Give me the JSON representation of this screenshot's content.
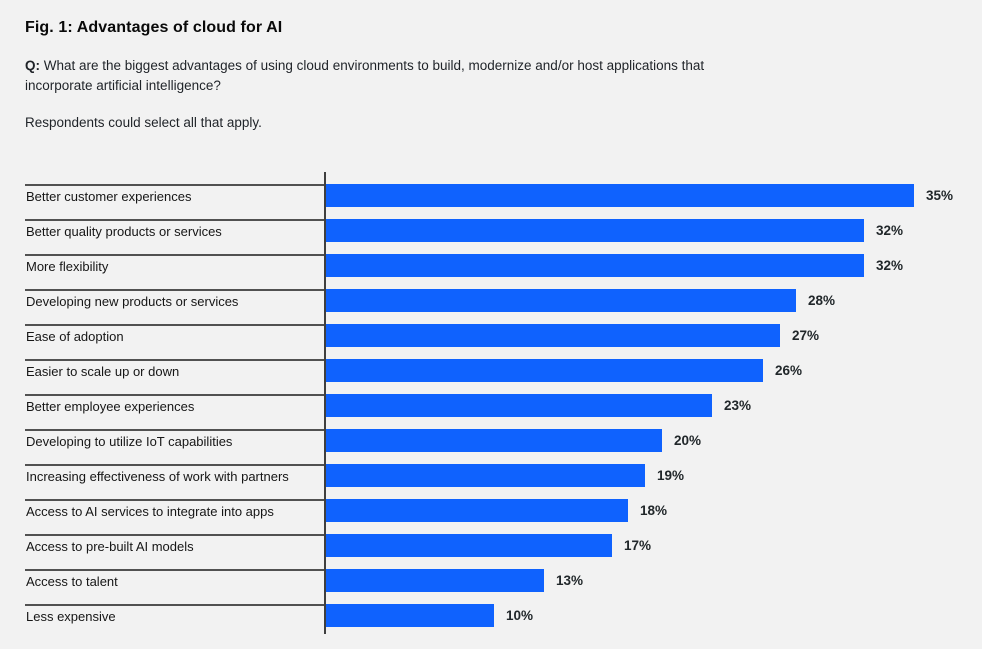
{
  "header": {
    "title": "Fig. 1: Advantages of cloud for AI",
    "question_prefix": "Q:",
    "question_text": " What are the biggest advantages of using cloud environments to build, modernize and/or host applications that incorporate artificial intelligence?",
    "note": "Respondents could select all that apply."
  },
  "chart_data": {
    "type": "bar",
    "orientation": "horizontal",
    "title": "Fig. 1: Advantages of cloud for AI",
    "categories": [
      "Better customer experiences",
      "Better quality products or services",
      "More flexibility",
      "Developing new products or services",
      "Ease of adoption",
      "Easier to scale up or down",
      "Better employee experiences",
      "Developing to utilize IoT capabilities",
      "Increasing effectiveness of work with partners",
      "Access to AI services to integrate into apps",
      "Access to pre-built AI models",
      "Access to talent",
      "Less expensive"
    ],
    "values": [
      35,
      32,
      32,
      28,
      27,
      26,
      23,
      20,
      19,
      18,
      17,
      13,
      10
    ],
    "unit": "%",
    "xlim": [
      0,
      35
    ],
    "grid": false,
    "legend": "none",
    "bar_color": "#0f62fe",
    "background_color": "#f2f2f2",
    "axis_line_color": "#3f3f3f",
    "separator_color": "#515151"
  }
}
